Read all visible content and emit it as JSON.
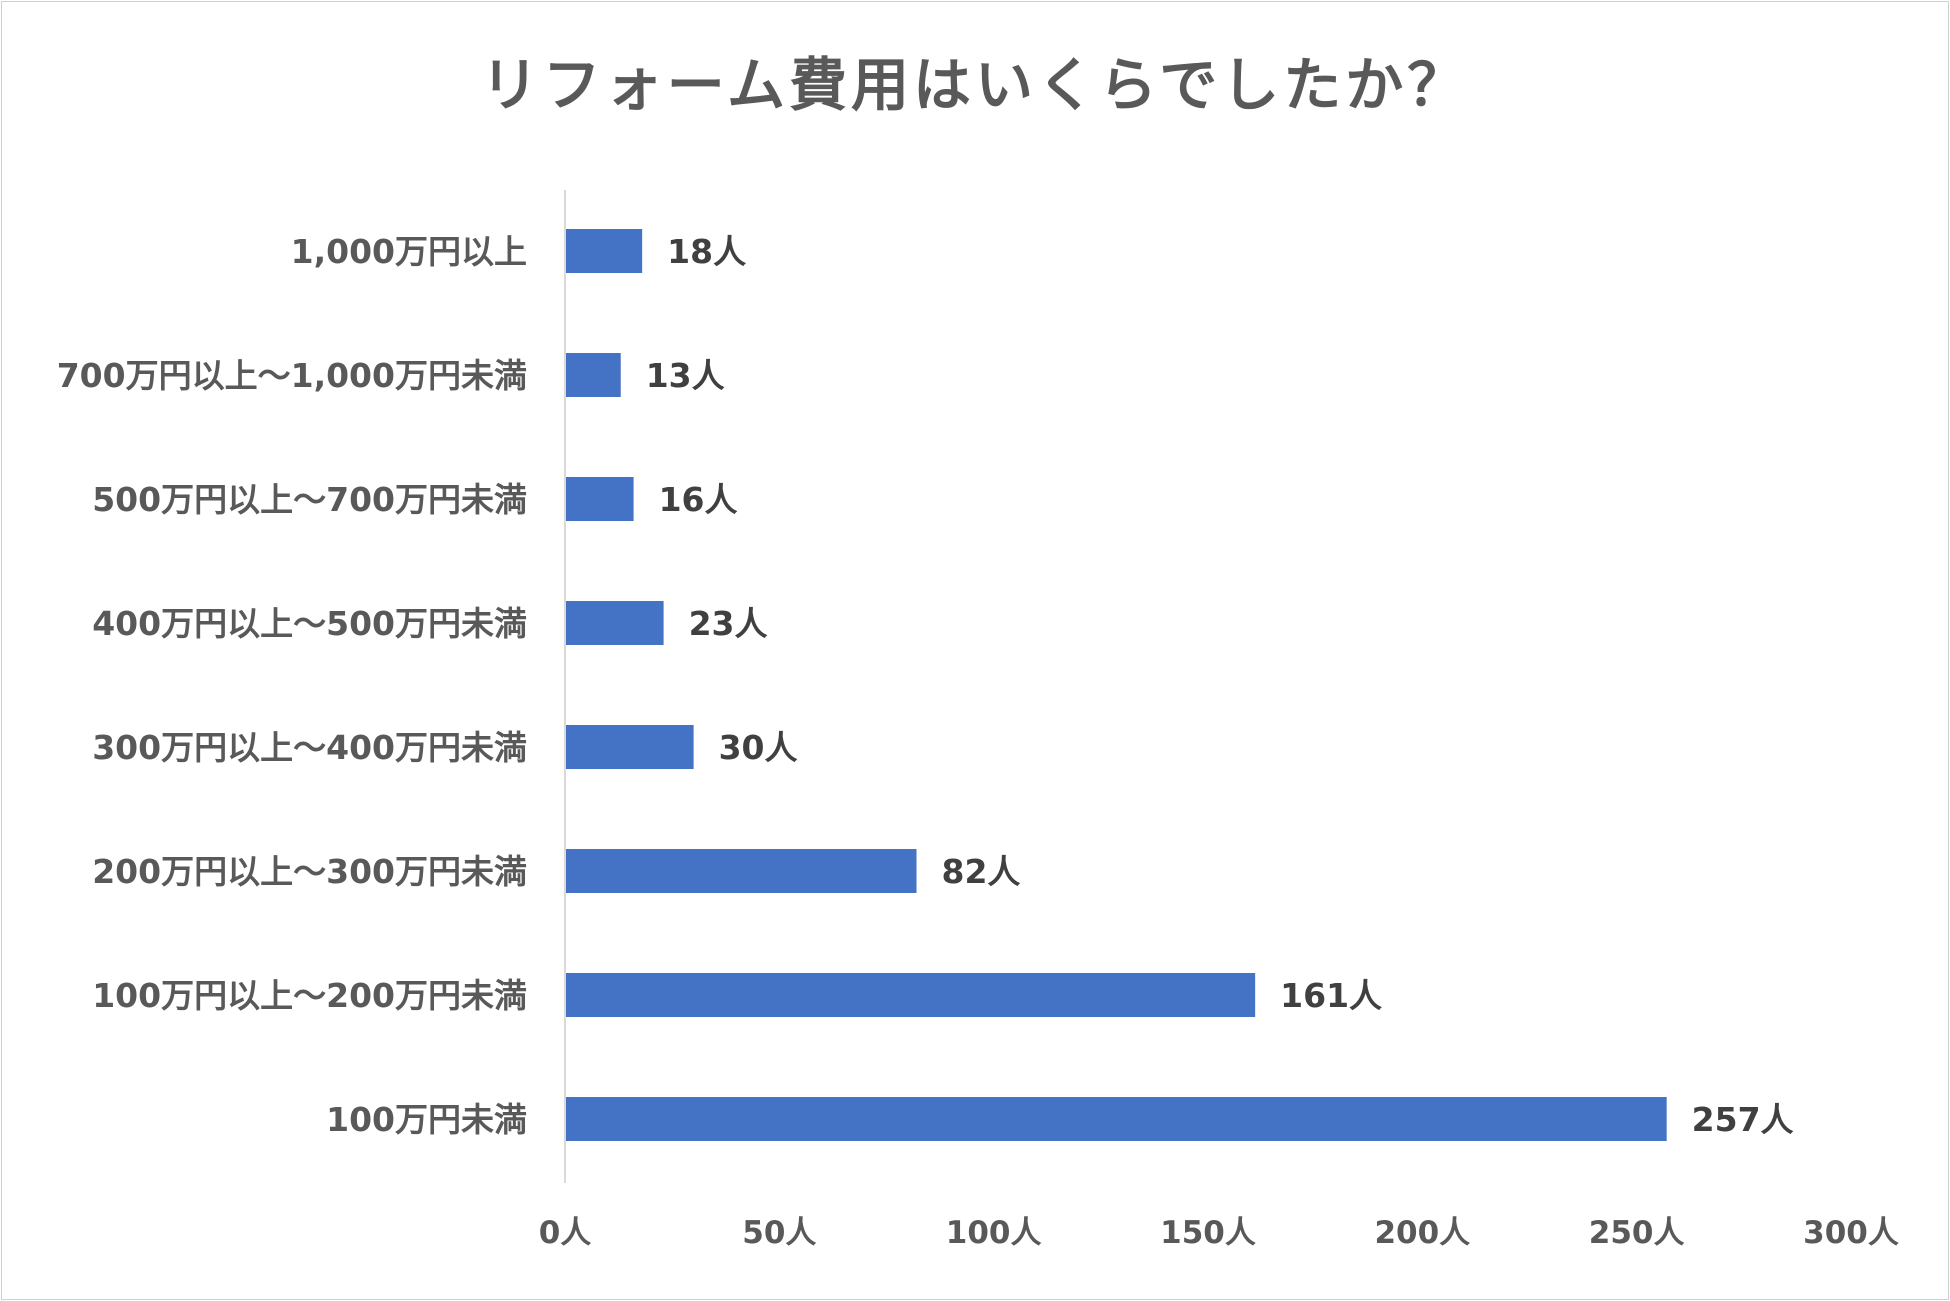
{
  "chart_data": {
    "type": "bar",
    "orientation": "horizontal",
    "title": "リフォーム費用はいくらでしたか？",
    "categories": [
      "1,000万円以上",
      "700万円以上～1,000万円未満",
      "500万円以上～700万円未満",
      "400万円以上～500万円未満",
      "300万円以上～400万円未満",
      "200万円以上～300万円未満",
      "100万円以上～200万円未満",
      "100万円未満"
    ],
    "values": [
      18,
      13,
      16,
      23,
      30,
      82,
      161,
      257
    ],
    "value_labels": [
      "18人",
      "13人",
      "16人",
      "23人",
      "30人",
      "82人",
      "161人",
      "257人"
    ],
    "xlim": [
      0,
      300
    ],
    "x_ticks": [
      0,
      50,
      100,
      150,
      200,
      250,
      300
    ],
    "x_tick_labels": [
      "0人",
      "50人",
      "100人",
      "150人",
      "200人",
      "250人",
      "300人"
    ],
    "unit": "人",
    "grid": false,
    "bar_color": "#4472C4",
    "xlabel": "",
    "ylabel": ""
  }
}
